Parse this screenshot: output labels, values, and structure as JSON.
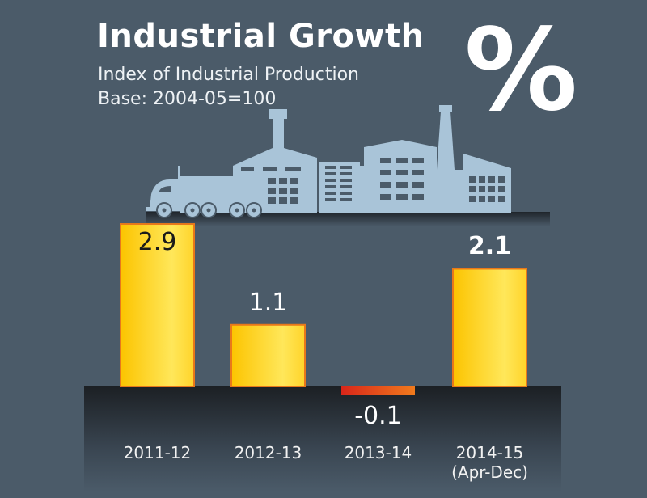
{
  "header": {
    "title": "Industrial Growth",
    "subtitle": "Index of Industrial Production",
    "base": "Base: 2004-05=100",
    "unit_symbol": "%"
  },
  "colors": {
    "background": "#4b5b69",
    "bar": "#ffcc10",
    "negative_bar": "#e04a1c",
    "factory": "#a9c4d8"
  },
  "chart_data": {
    "type": "bar",
    "title": "Industrial Growth",
    "subtitle": "Index of Industrial Production, Base: 2004-05=100",
    "ylabel": "%",
    "categories": [
      "2011-12",
      "2012-13",
      "2013-14",
      "2014-15"
    ],
    "category_notes": [
      "",
      "",
      "",
      "(Apr-Dec)"
    ],
    "values": [
      2.9,
      1.1,
      -0.1,
      2.1
    ],
    "value_labels": [
      "2.9",
      "1.1",
      "-0.1",
      "2.1"
    ],
    "grid": false
  }
}
